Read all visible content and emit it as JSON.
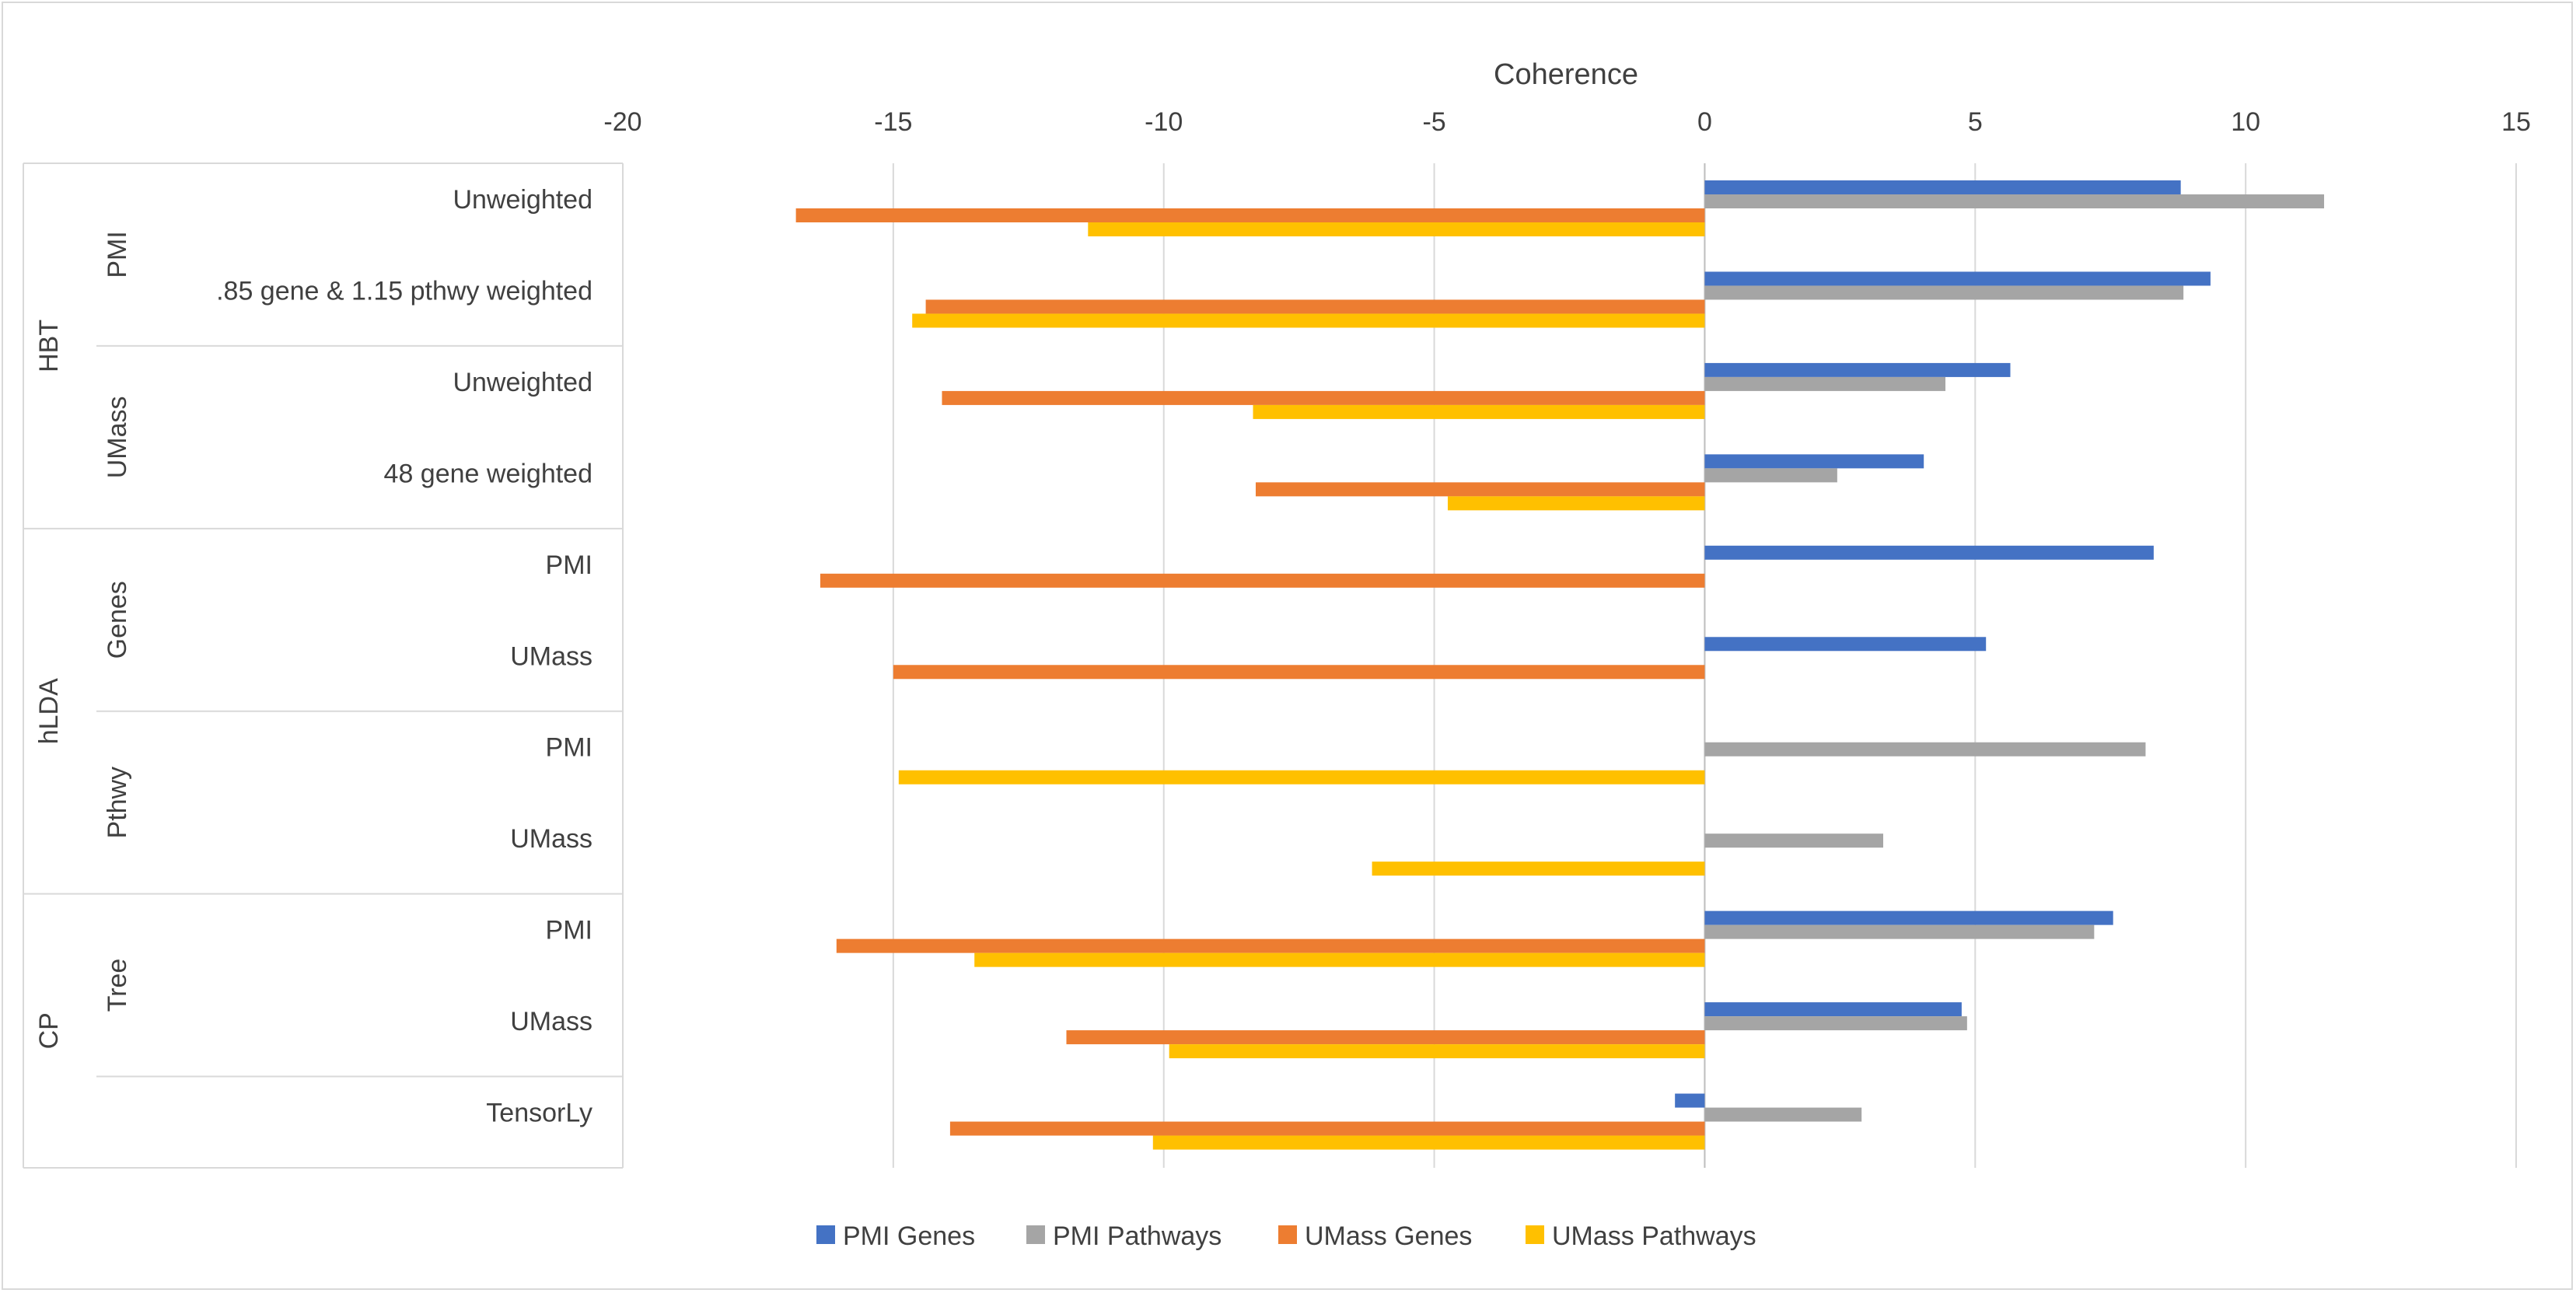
{
  "chart_data": {
    "type": "bar",
    "orientation": "horizontal",
    "title": "",
    "xlabel": "Coherence",
    "ylabel": "",
    "xlim": [
      -20,
      15
    ],
    "xticks": [
      -20,
      -15,
      -10,
      -5,
      0,
      5,
      10,
      15
    ],
    "tick_labels": [
      "-20",
      "-15",
      "-10",
      "-5",
      "0",
      "5",
      "10",
      "15"
    ],
    "grid": true,
    "legend_position": "bottom",
    "categories": [
      "Unweighted",
      ".85 gene & 1.15 pthwy weighted",
      "Unweighted",
      "48 gene weighted",
      "PMI",
      "UMass",
      "PMI",
      "UMass",
      "PMI",
      "UMass",
      "TensorLy"
    ],
    "groups": [
      {
        "name": "HBT",
        "subgroups": [
          {
            "name": "PMI",
            "count": 2
          },
          {
            "name": "UMass",
            "count": 2
          }
        ]
      },
      {
        "name": "hLDA",
        "subgroups": [
          {
            "name": "Genes",
            "count": 2
          },
          {
            "name": "Pthwy",
            "count": 2
          }
        ]
      },
      {
        "name": "CP",
        "subgroups": [
          {
            "name": "Tree",
            "count": 2
          },
          {
            "name": "",
            "count": 1
          }
        ]
      }
    ],
    "series": [
      {
        "name": "PMI Genes",
        "color": "#4472C4",
        "values": [
          8.8,
          9.35,
          5.65,
          4.05,
          8.3,
          5.2,
          null,
          null,
          7.55,
          4.75,
          -0.55
        ]
      },
      {
        "name": "PMI Pathways",
        "color": "#A5A5A5",
        "values": [
          11.45,
          8.85,
          4.45,
          2.45,
          null,
          null,
          8.15,
          3.3,
          7.2,
          4.85,
          2.9
        ]
      },
      {
        "name": "UMass Genes",
        "color": "#ED7D31",
        "values": [
          -16.8,
          -14.4,
          -14.1,
          -8.3,
          -16.35,
          -15.0,
          null,
          null,
          -16.05,
          -11.8,
          -13.95
        ]
      },
      {
        "name": "UMass Pathways",
        "color": "#FFC000",
        "values": [
          -11.4,
          -14.65,
          -8.35,
          -4.75,
          null,
          null,
          -14.9,
          -6.15,
          -13.5,
          -9.9,
          -10.2
        ]
      }
    ]
  }
}
